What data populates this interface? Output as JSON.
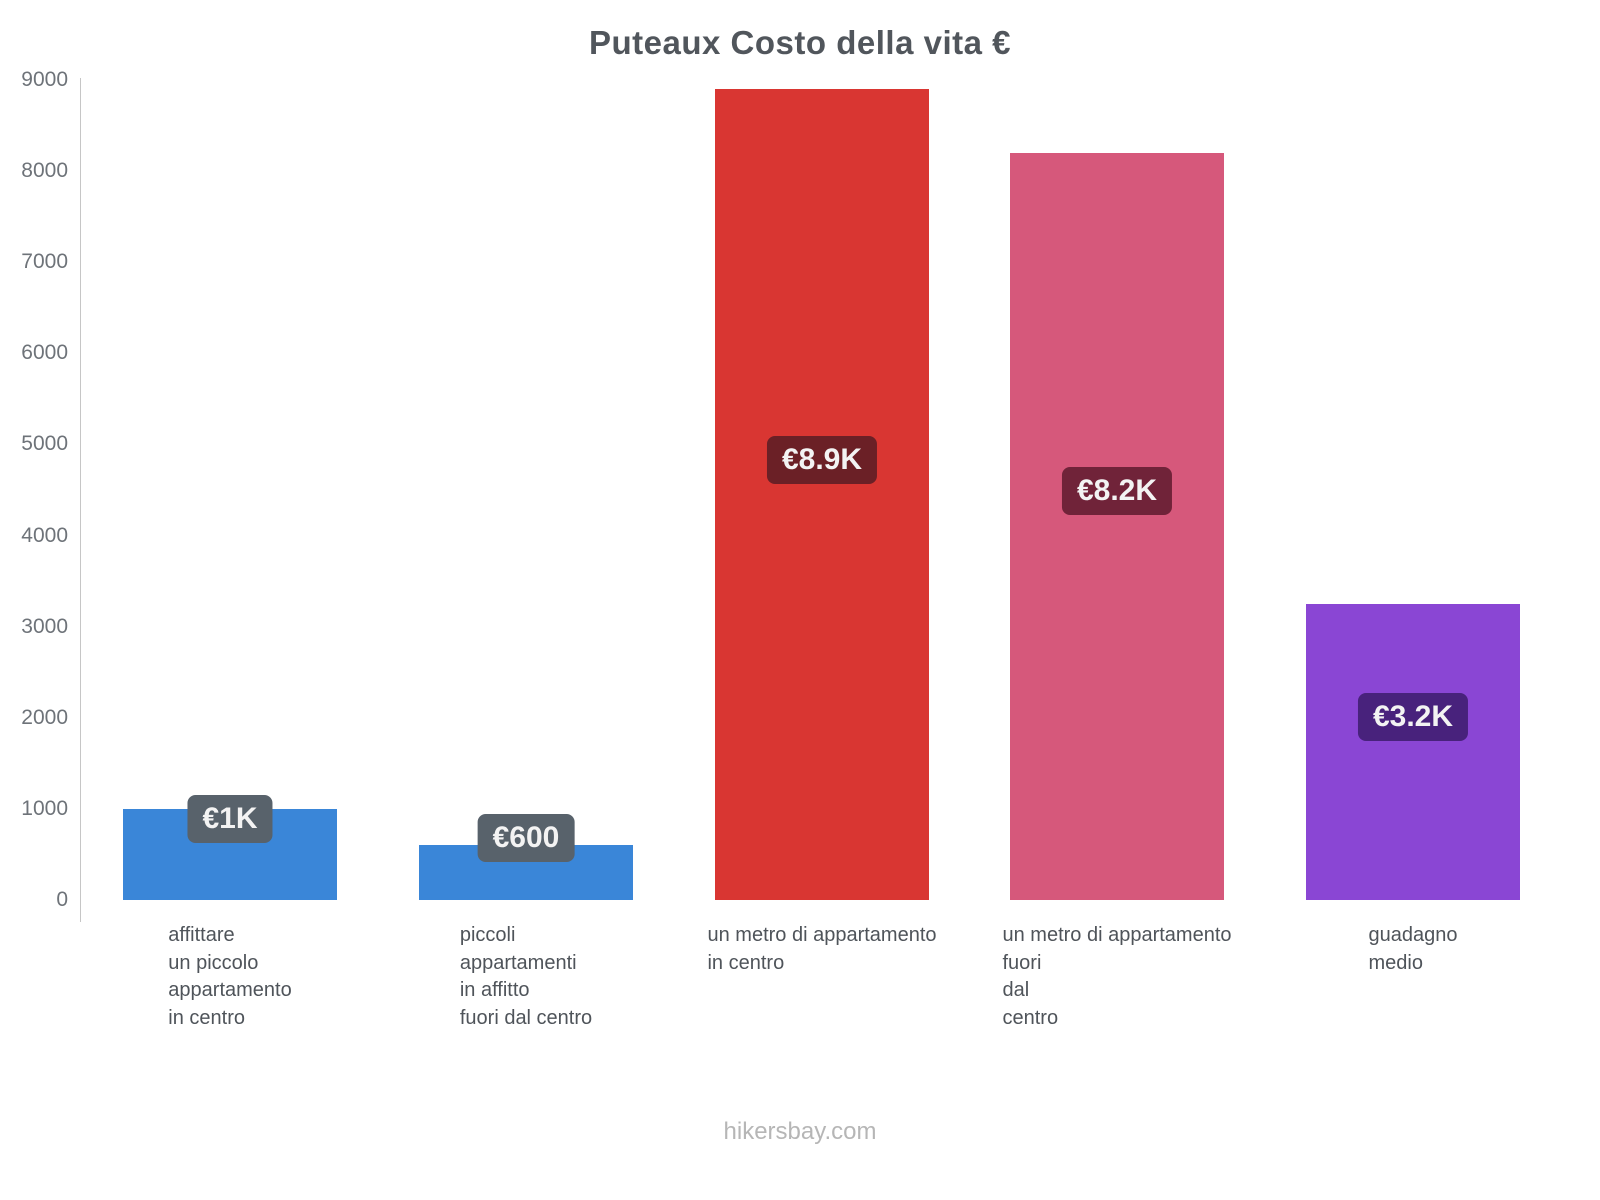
{
  "chart_data": {
    "type": "bar",
    "title": "Puteaux Costo della vita €",
    "categories": [
      "affittare\nun piccolo\nappartamento\nin centro",
      "piccoli\nappartamenti\nin affitto\nfuori dal centro",
      "un metro di appartamento\nin centro",
      "un metro di appartamento\nfuori\ndal\ncentro",
      "guadagno\nmedio"
    ],
    "values": [
      1000,
      600,
      8900,
      8200,
      3250
    ],
    "value_labels": [
      "€1K",
      "€600",
      "€8.9K",
      "€8.2K",
      "€3.2K"
    ],
    "bar_colors": [
      "#3a86d8",
      "#3a86d8",
      "#d93632",
      "#d6587b",
      "#8a46d4"
    ],
    "badge_colors": [
      "#58626b",
      "#58626b",
      "#6b2026",
      "#702339",
      "#48227c"
    ],
    "xlabel": "",
    "ylabel": "",
    "ylim": [
      0,
      9000
    ],
    "yticks": [
      0,
      1000,
      2000,
      3000,
      4000,
      5000,
      6000,
      7000,
      8000,
      9000
    ],
    "grid": false,
    "legend": false
  },
  "footer": {
    "text": "hikersbay.com"
  }
}
